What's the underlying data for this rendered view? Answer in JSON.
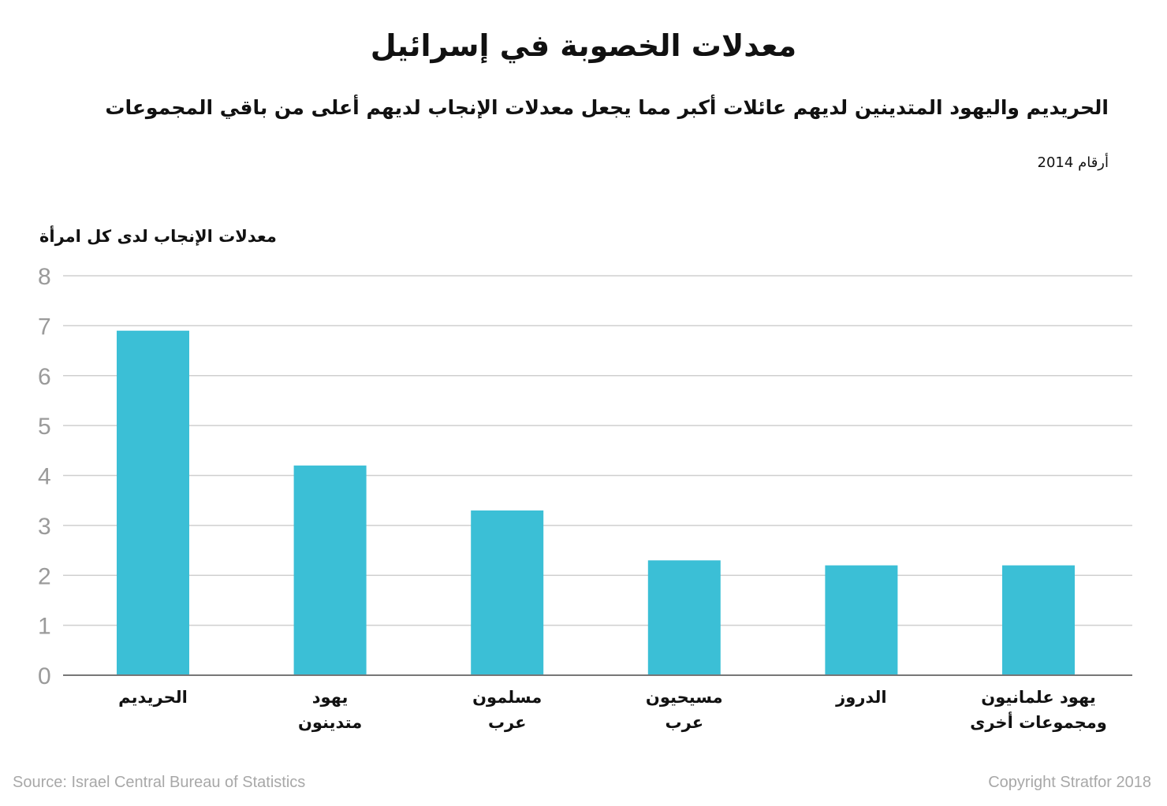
{
  "chart_data": {
    "type": "bar",
    "title": "معدلات الخصوبة في إسرائيل",
    "subtitle": "الحريديم واليهود المتدينين لديهم عائلات أكبر مما يجعل معدلات الإنجاب لديهم أعلى من باقي المجموعات",
    "note": "أرقام 2014",
    "ylabel": "معدلات الإنجاب لدى كل امرأة",
    "xlabel": "",
    "categories": [
      [
        "الحريديم"
      ],
      [
        "يهود",
        "متدينون"
      ],
      [
        "مسلمون",
        "عرب"
      ],
      [
        "مسيحيون",
        "عرب"
      ],
      [
        "الدروز"
      ],
      [
        "يهود علمانيون",
        "ومجموعات أخرى"
      ]
    ],
    "values": [
      6.9,
      4.2,
      3.3,
      2.3,
      2.2,
      2.2
    ],
    "ylim": [
      0,
      8
    ],
    "yticks": [
      "0",
      "1",
      "2",
      "3",
      "4",
      "5",
      "6",
      "7",
      "8"
    ],
    "grid": true,
    "bar_color": "#3bbfd6",
    "grid_color": "#cfcfcf",
    "axis_color": "#777777"
  },
  "footer": {
    "source": "Source: Israel Central Bureau of Statistics",
    "copyright": "Copyright Stratfor 2018"
  }
}
